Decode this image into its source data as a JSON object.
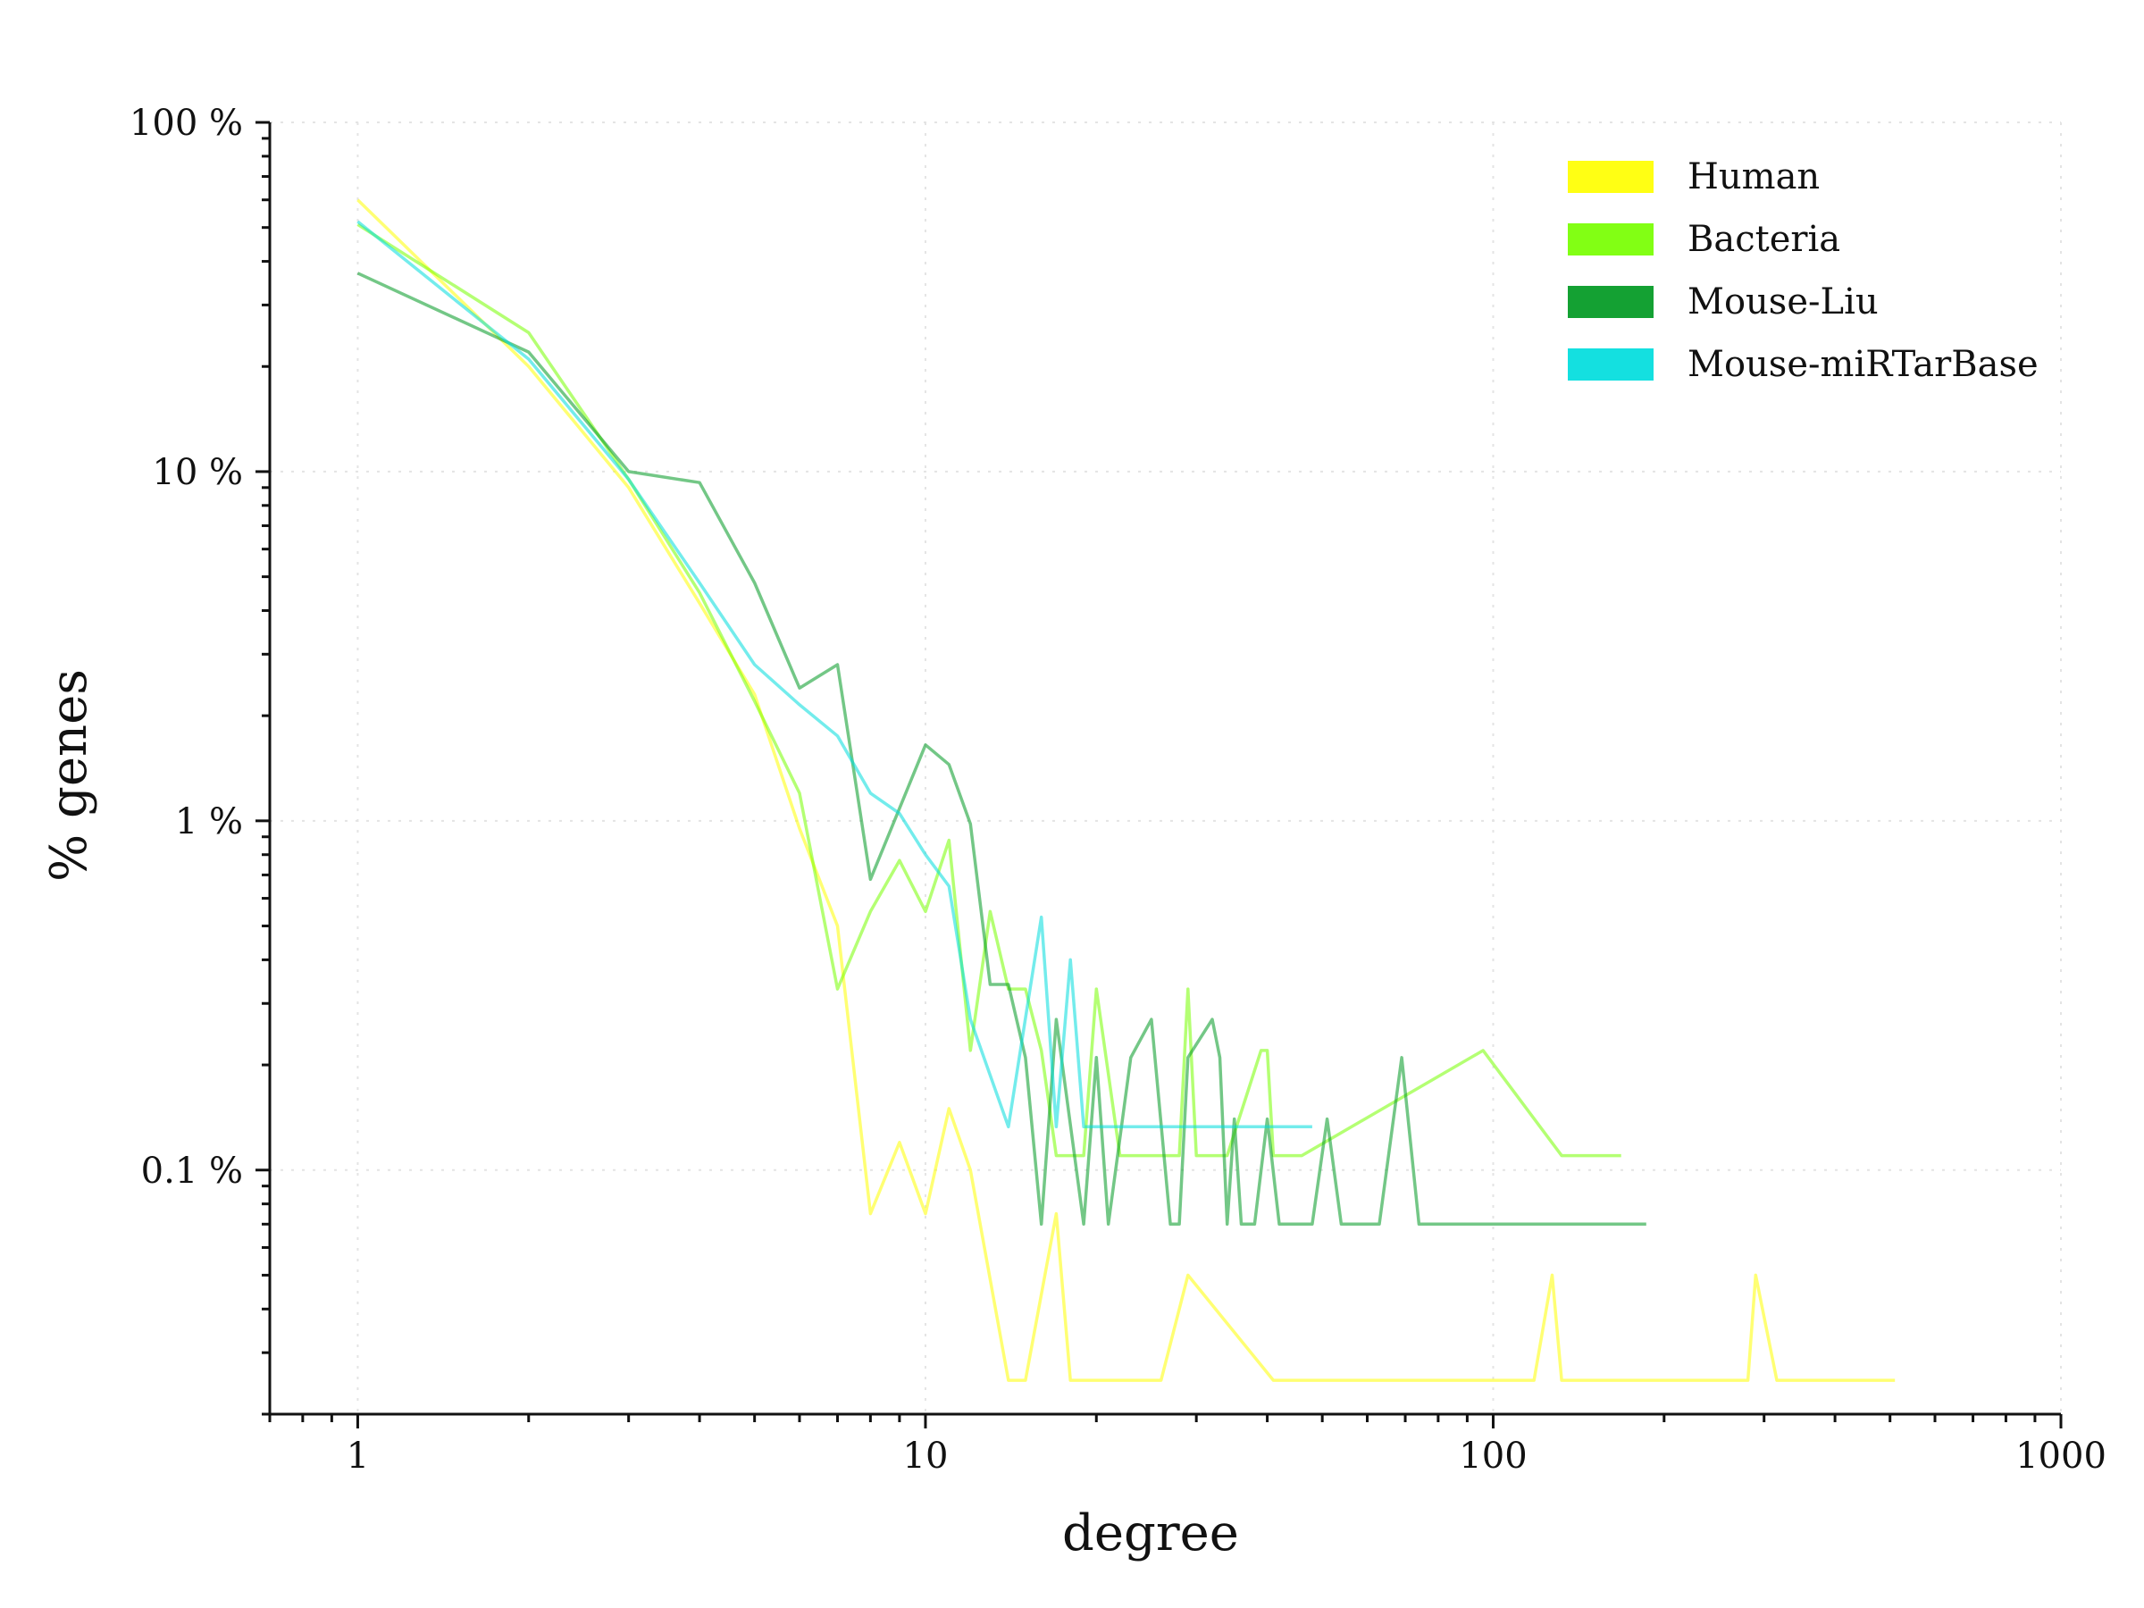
{
  "chart_data": {
    "type": "line",
    "xscale": "log",
    "yscale": "log",
    "xlabel": "degree",
    "ylabel": "% genes",
    "xlim": [
      0.7,
      1000
    ],
    "ylim": [
      0.02,
      100
    ],
    "grid": true,
    "legend_position": "top-right",
    "x_ticks": [
      {
        "value": 1,
        "label": "1"
      },
      {
        "value": 10,
        "label": "10"
      },
      {
        "value": 100,
        "label": "100"
      },
      {
        "value": 1000,
        "label": "1000"
      }
    ],
    "y_ticks": [
      {
        "value": 100,
        "label": "100 %"
      },
      {
        "value": 10,
        "label": "10 %"
      },
      {
        "value": 1,
        "label": "1 %"
      },
      {
        "value": 0.1,
        "label": "0.1 %"
      }
    ],
    "series": [
      {
        "name": "Human",
        "color": "#ffff00",
        "points": [
          [
            1,
            60
          ],
          [
            2,
            20
          ],
          [
            3,
            9
          ],
          [
            4,
            4.2
          ],
          [
            5,
            2.3
          ],
          [
            6,
            0.95
          ],
          [
            7,
            0.5
          ],
          [
            8,
            0.075
          ],
          [
            9,
            0.12
          ],
          [
            10,
            0.075
          ],
          [
            11,
            0.15
          ],
          [
            12,
            0.1
          ],
          [
            14,
            0.025
          ],
          [
            15,
            0.025
          ],
          [
            17,
            0.075
          ],
          [
            18,
            0.025
          ],
          [
            26,
            0.025
          ],
          [
            29,
            0.05
          ],
          [
            41,
            0.025
          ],
          [
            118,
            0.025
          ],
          [
            127,
            0.05
          ],
          [
            132,
            0.025
          ],
          [
            281,
            0.025
          ],
          [
            290,
            0.05
          ],
          [
            316,
            0.025
          ],
          [
            510,
            0.025
          ]
        ]
      },
      {
        "name": "Bacteria",
        "color": "#77ff00",
        "points": [
          [
            1,
            51
          ],
          [
            2,
            25
          ],
          [
            3,
            9.5
          ],
          [
            4,
            4.5
          ],
          [
            5,
            2.2
          ],
          [
            6,
            1.2
          ],
          [
            7,
            0.33
          ],
          [
            8,
            0.55
          ],
          [
            9,
            0.77
          ],
          [
            10,
            0.55
          ],
          [
            11,
            0.88
          ],
          [
            12,
            0.22
          ],
          [
            13,
            0.55
          ],
          [
            14,
            0.33
          ],
          [
            15,
            0.33
          ],
          [
            16,
            0.22
          ],
          [
            17,
            0.11
          ],
          [
            19,
            0.11
          ],
          [
            20,
            0.33
          ],
          [
            22,
            0.11
          ],
          [
            28,
            0.11
          ],
          [
            29,
            0.33
          ],
          [
            30,
            0.11
          ],
          [
            34,
            0.11
          ],
          [
            39,
            0.22
          ],
          [
            40,
            0.22
          ],
          [
            41,
            0.11
          ],
          [
            46,
            0.11
          ],
          [
            96,
            0.22
          ],
          [
            132,
            0.11
          ],
          [
            168,
            0.11
          ]
        ]
      },
      {
        "name": "Mouse-Liu",
        "color": "#009922",
        "points": [
          [
            1,
            37
          ],
          [
            2,
            22
          ],
          [
            3,
            10
          ],
          [
            4,
            9.3
          ],
          [
            5,
            4.8
          ],
          [
            6,
            2.4
          ],
          [
            7,
            2.8
          ],
          [
            8,
            0.68
          ],
          [
            10,
            1.65
          ],
          [
            11,
            1.45
          ],
          [
            12,
            0.98
          ],
          [
            13,
            0.34
          ],
          [
            14,
            0.34
          ],
          [
            15,
            0.21
          ],
          [
            16,
            0.07
          ],
          [
            17,
            0.27
          ],
          [
            19,
            0.07
          ],
          [
            20,
            0.21
          ],
          [
            21,
            0.07
          ],
          [
            23,
            0.21
          ],
          [
            25,
            0.27
          ],
          [
            27,
            0.07
          ],
          [
            28,
            0.07
          ],
          [
            29,
            0.21
          ],
          [
            32,
            0.27
          ],
          [
            33,
            0.21
          ],
          [
            34,
            0.07
          ],
          [
            35,
            0.14
          ],
          [
            36,
            0.07
          ],
          [
            38,
            0.07
          ],
          [
            40,
            0.14
          ],
          [
            42,
            0.07
          ],
          [
            48,
            0.07
          ],
          [
            51,
            0.14
          ],
          [
            54,
            0.07
          ],
          [
            63,
            0.07
          ],
          [
            69,
            0.21
          ],
          [
            74,
            0.07
          ],
          [
            186,
            0.07
          ]
        ]
      },
      {
        "name": "Mouse-miRTarBase",
        "color": "#00dddd",
        "points": [
          [
            1,
            52
          ],
          [
            2,
            21
          ],
          [
            3,
            9.5
          ],
          [
            4,
            4.8
          ],
          [
            5,
            2.8
          ],
          [
            6,
            2.15
          ],
          [
            7,
            1.75
          ],
          [
            8,
            1.2
          ],
          [
            9,
            1.05
          ],
          [
            10,
            0.8
          ],
          [
            11,
            0.65
          ],
          [
            12,
            0.27
          ],
          [
            14,
            0.133
          ],
          [
            16,
            0.53
          ],
          [
            17,
            0.133
          ],
          [
            18,
            0.4
          ],
          [
            19,
            0.133
          ],
          [
            48,
            0.133
          ]
        ]
      }
    ]
  }
}
